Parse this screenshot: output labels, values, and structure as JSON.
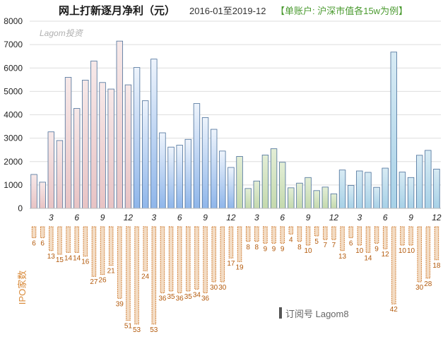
{
  "chart_data": {
    "type": "bar",
    "title": "网上打新逐月净利（元）",
    "subtitle": "2016-01至2019-12",
    "note": "【单账户: 沪深市值各15w为例】",
    "watermark": "Lagom投资",
    "footer": "订阅号 Lagom8",
    "ylim": [
      0,
      8000
    ],
    "yticks": [
      "0",
      "1000",
      "2000",
      "3000",
      "4000",
      "5000",
      "6000",
      "7000",
      "8000"
    ],
    "xtick_months": [
      "3",
      "6",
      "9",
      "12"
    ],
    "ipo_axis_label": "IPO家数",
    "series": [
      {
        "values": [
          1450,
          1120,
          3270,
          2900,
          5600,
          4270,
          5480,
          6300,
          5380,
          5100,
          7150,
          5280,
          6020,
          4600,
          6380,
          3230,
          2620,
          2700,
          2950,
          4480,
          3880,
          3380,
          2450,
          1750,
          2220,
          850,
          1170,
          2280,
          2550,
          1970,
          880,
          1080,
          1320,
          760,
          910,
          620,
          1640,
          980,
          1600,
          1540,
          900,
          1720,
          6680,
          1550,
          1320,
          2270,
          2480,
          1680
        ]
      },
      {
        "name": "IPO家数",
        "values": [
          6,
          6,
          13,
          15,
          14,
          14,
          16,
          27,
          26,
          21,
          39,
          51,
          53,
          24,
          53,
          36,
          35,
          36,
          35,
          34,
          36,
          30,
          30,
          17,
          19,
          8,
          8,
          9,
          9,
          9,
          4,
          8,
          10,
          5,
          7,
          7,
          13,
          6,
          10,
          14,
          9,
          12,
          42,
          10,
          10,
          30,
          28,
          18
        ]
      }
    ],
    "year_colors": {
      "2016": [
        "#f7e9e9",
        "#e8c3c4"
      ],
      "2017": [
        "#eef4fc",
        "#8fb6ea"
      ],
      "2018": [
        "#e3eed6",
        "#c4d9ad"
      ],
      "2019": [
        "#d8ebf4",
        "#a7d1e7"
      ]
    },
    "bar_stroke": "#4a6f99",
    "ipo_color": "#c86a17"
  }
}
